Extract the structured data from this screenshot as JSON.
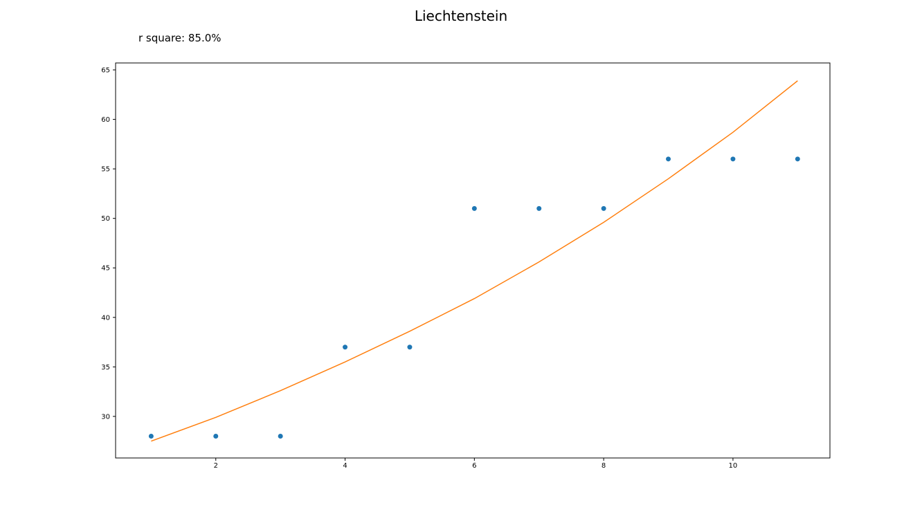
{
  "chart_data": {
    "type": "scatter",
    "title": "Liechtenstein",
    "annotation": "r square: 85.0%",
    "xlabel": "",
    "ylabel": "",
    "xlim": [
      0.45,
      11.5
    ],
    "ylim": [
      25.8,
      65.7
    ],
    "x_ticks": [
      2,
      4,
      6,
      8,
      10
    ],
    "y_ticks": [
      30,
      35,
      40,
      45,
      50,
      55,
      60,
      65
    ],
    "grid": false,
    "series": [
      {
        "kind": "points",
        "color": "#1f77b4",
        "x": [
          1,
          2,
          3,
          4,
          5,
          6,
          7,
          8,
          9,
          10,
          11
        ],
        "y": [
          28,
          28,
          28,
          37,
          37,
          51,
          51,
          51,
          56,
          56,
          56
        ]
      },
      {
        "kind": "line",
        "color": "#ff7f0e",
        "x": [
          1,
          2,
          3,
          4,
          5,
          6,
          7,
          8,
          9,
          10,
          11
        ],
        "y": [
          27.5,
          29.9,
          32.6,
          35.5,
          38.6,
          41.9,
          45.6,
          49.6,
          54.0,
          58.7,
          63.9
        ]
      }
    ]
  }
}
